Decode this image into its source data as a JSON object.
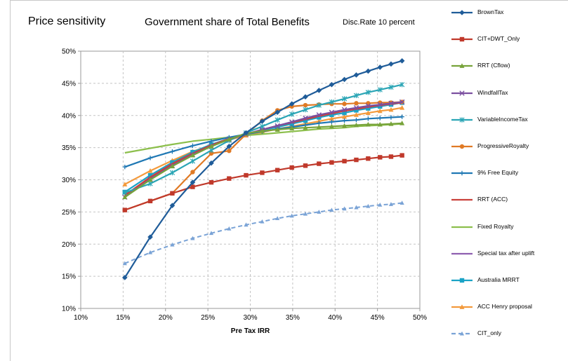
{
  "titles": {
    "main": "Price sensitivity",
    "sub": "Government share of Total Benefits",
    "note": "Disc.Rate 10 percent"
  },
  "chart_data": {
    "type": "line",
    "xlabel": "Pre Tax IRR",
    "ylabel": "",
    "xlim": [
      0.1,
      0.5
    ],
    "ylim": [
      0.1,
      0.5
    ],
    "x_ticks": [
      "10%",
      "15%",
      "20%",
      "25%",
      "30%",
      "35%",
      "40%",
      "45%",
      "50%"
    ],
    "y_ticks": [
      "10%",
      "15%",
      "20%",
      "25%",
      "30%",
      "35%",
      "40%",
      "45%",
      "50%"
    ],
    "grid": true,
    "legend_position": "right",
    "series": [
      {
        "name": "BrownTax",
        "color": "#1f5c99",
        "marker": "diamond",
        "dash": false,
        "x": [
          0.152,
          0.182,
          0.208,
          0.232,
          0.254,
          0.275,
          0.295,
          0.314,
          0.332,
          0.349,
          0.365,
          0.381,
          0.396,
          0.411,
          0.425,
          0.439,
          0.453,
          0.466,
          0.479
        ],
        "y": [
          0.148,
          0.211,
          0.26,
          0.296,
          0.326,
          0.352,
          0.373,
          0.391,
          0.405,
          0.418,
          0.429,
          0.439,
          0.448,
          0.456,
          0.463,
          0.469,
          0.475,
          0.48,
          0.485
        ]
      },
      {
        "name": "CIT+DWT_Only",
        "color": "#c0392b",
        "marker": "square",
        "dash": false,
        "x": [
          0.152,
          0.182,
          0.208,
          0.232,
          0.254,
          0.275,
          0.295,
          0.314,
          0.332,
          0.349,
          0.365,
          0.381,
          0.396,
          0.411,
          0.425,
          0.439,
          0.453,
          0.466,
          0.479
        ],
        "y": [
          0.253,
          0.267,
          0.279,
          0.289,
          0.296,
          0.302,
          0.307,
          0.311,
          0.315,
          0.319,
          0.322,
          0.325,
          0.327,
          0.329,
          0.331,
          0.333,
          0.335,
          0.336,
          0.338
        ]
      },
      {
        "name": "RRT (Cflow)",
        "color": "#77a33a",
        "marker": "triangle",
        "dash": false,
        "x": [
          0.152,
          0.182,
          0.208,
          0.232,
          0.254,
          0.275,
          0.295,
          0.314,
          0.332,
          0.349,
          0.365,
          0.381,
          0.396,
          0.411,
          0.425,
          0.439,
          0.453,
          0.466,
          0.479
        ],
        "y": [
          0.273,
          0.3,
          0.321,
          0.338,
          0.352,
          0.363,
          0.372,
          0.376,
          0.378,
          0.38,
          0.381,
          0.382,
          0.383,
          0.384,
          0.385,
          0.386,
          0.386,
          0.387,
          0.388
        ]
      },
      {
        "name": "WindfallTax",
        "color": "#7b4fa0",
        "marker": "x",
        "dash": false,
        "x": [
          0.152,
          0.182,
          0.208,
          0.232,
          0.254,
          0.275,
          0.295,
          0.314,
          0.332,
          0.349,
          0.365,
          0.381,
          0.396,
          0.411,
          0.425,
          0.439,
          0.453,
          0.466,
          0.479
        ],
        "y": [
          0.273,
          0.301,
          0.322,
          0.339,
          0.352,
          0.363,
          0.371,
          0.378,
          0.384,
          0.39,
          0.396,
          0.401,
          0.405,
          0.409,
          0.412,
          0.415,
          0.417,
          0.419,
          0.421
        ]
      },
      {
        "name": "VariableIncomeTax",
        "color": "#2aa5b5",
        "marker": "asterisk",
        "dash": false,
        "x": [
          0.152,
          0.182,
          0.208,
          0.232,
          0.254,
          0.275,
          0.295,
          0.314,
          0.332,
          0.349,
          0.365,
          0.381,
          0.396,
          0.411,
          0.425,
          0.439,
          0.453,
          0.466,
          0.479
        ],
        "y": [
          0.28,
          0.294,
          0.311,
          0.329,
          0.346,
          0.361,
          0.373,
          0.383,
          0.393,
          0.402,
          0.409,
          0.416,
          0.421,
          0.426,
          0.431,
          0.436,
          0.44,
          0.444,
          0.448
        ]
      },
      {
        "name": "ProgressiveRoyalty",
        "color": "#e07a25",
        "marker": "circle",
        "dash": false,
        "x": [
          0.152,
          0.182,
          0.208,
          0.232,
          0.254,
          0.275,
          0.295,
          0.314,
          0.332,
          0.349,
          0.365,
          0.381,
          0.396,
          0.411,
          0.425,
          0.439,
          0.453,
          0.466,
          0.479
        ],
        "y": [
          0.253,
          0.267,
          0.279,
          0.312,
          0.341,
          0.345,
          0.371,
          0.392,
          0.408,
          0.414,
          0.416,
          0.417,
          0.418,
          0.418,
          0.419,
          0.419,
          0.42,
          0.42,
          0.421
        ]
      },
      {
        "name": "9% Free Equity",
        "color": "#1f78b4",
        "marker": "plus",
        "dash": false,
        "x": [
          0.152,
          0.182,
          0.208,
          0.232,
          0.254,
          0.275,
          0.295,
          0.314,
          0.332,
          0.349,
          0.365,
          0.381,
          0.396,
          0.411,
          0.425,
          0.439,
          0.453,
          0.466,
          0.479
        ],
        "y": [
          0.32,
          0.334,
          0.344,
          0.353,
          0.36,
          0.366,
          0.371,
          0.375,
          0.379,
          0.382,
          0.385,
          0.388,
          0.39,
          0.392,
          0.393,
          0.395,
          0.396,
          0.397,
          0.398
        ]
      },
      {
        "name": "RRT (ACC)",
        "color": "#c9403a",
        "marker": "none",
        "dash": false,
        "x": [
          0.152,
          0.182,
          0.208,
          0.232,
          0.254,
          0.275,
          0.295,
          0.314,
          0.332,
          0.349,
          0.365,
          0.381,
          0.396,
          0.411,
          0.425,
          0.439,
          0.453,
          0.466,
          0.479
        ],
        "y": [
          0.276,
          0.304,
          0.325,
          0.341,
          0.354,
          0.364,
          0.371,
          0.378,
          0.384,
          0.389,
          0.394,
          0.399,
          0.403,
          0.407,
          0.41,
          0.413,
          0.416,
          0.418,
          0.42
        ]
      },
      {
        "name": "Fixed Royalty",
        "color": "#8cbf4c",
        "marker": "none",
        "dash": false,
        "x": [
          0.152,
          0.182,
          0.208,
          0.232,
          0.254,
          0.275,
          0.295,
          0.314,
          0.332,
          0.349,
          0.365,
          0.381,
          0.396,
          0.411,
          0.425,
          0.439,
          0.453,
          0.466,
          0.479
        ],
        "y": [
          0.342,
          0.349,
          0.355,
          0.36,
          0.363,
          0.366,
          0.369,
          0.371,
          0.373,
          0.375,
          0.377,
          0.379,
          0.38,
          0.381,
          0.383,
          0.384,
          0.385,
          0.386,
          0.387
        ]
      },
      {
        "name": "Special tax after uplift",
        "color": "#8e5fb0",
        "marker": "none",
        "dash": false,
        "x": [
          0.152,
          0.182,
          0.208,
          0.232,
          0.254,
          0.275,
          0.295,
          0.314,
          0.332,
          0.349,
          0.365,
          0.381,
          0.396,
          0.411,
          0.425,
          0.439,
          0.453,
          0.466,
          0.479
        ],
        "y": [
          0.275,
          0.303,
          0.324,
          0.34,
          0.353,
          0.363,
          0.371,
          0.378,
          0.384,
          0.39,
          0.395,
          0.4,
          0.404,
          0.408,
          0.411,
          0.414,
          0.416,
          0.418,
          0.42
        ]
      },
      {
        "name": "Australia MRRT",
        "color": "#1aa3c6",
        "marker": "square",
        "dash": false,
        "x": [
          0.152,
          0.182,
          0.208,
          0.232,
          0.254,
          0.275,
          0.295,
          0.314,
          0.332,
          0.349,
          0.365,
          0.381,
          0.396,
          0.411,
          0.425,
          0.439,
          0.453,
          0.466,
          0.479
        ],
        "y": [
          0.281,
          0.307,
          0.327,
          0.343,
          0.355,
          0.364,
          0.371,
          0.377,
          0.382,
          0.387,
          0.392,
          0.397,
          0.401,
          0.404,
          0.408,
          0.411,
          0.414,
          0.417,
          0.42
        ]
      },
      {
        "name": "ACC Henry proposal",
        "color": "#f39a3c",
        "marker": "triangle",
        "dash": false,
        "x": [
          0.152,
          0.182,
          0.208,
          0.232,
          0.254,
          0.275,
          0.295,
          0.314,
          0.332,
          0.349,
          0.365,
          0.381,
          0.396,
          0.411,
          0.425,
          0.439,
          0.453,
          0.466,
          0.479
        ],
        "y": [
          0.293,
          0.314,
          0.33,
          0.344,
          0.354,
          0.362,
          0.369,
          0.374,
          0.379,
          0.383,
          0.387,
          0.391,
          0.395,
          0.398,
          0.401,
          0.404,
          0.407,
          0.409,
          0.412
        ]
      },
      {
        "name": "CIT_only",
        "color": "#7aa3d6",
        "marker": "triangle",
        "dash": true,
        "x": [
          0.152,
          0.182,
          0.208,
          0.232,
          0.254,
          0.275,
          0.295,
          0.314,
          0.332,
          0.349,
          0.365,
          0.381,
          0.396,
          0.411,
          0.425,
          0.439,
          0.453,
          0.466,
          0.479
        ],
        "y": [
          0.17,
          0.187,
          0.199,
          0.209,
          0.217,
          0.224,
          0.23,
          0.235,
          0.24,
          0.244,
          0.247,
          0.25,
          0.253,
          0.255,
          0.257,
          0.259,
          0.261,
          0.262,
          0.264
        ]
      }
    ]
  }
}
